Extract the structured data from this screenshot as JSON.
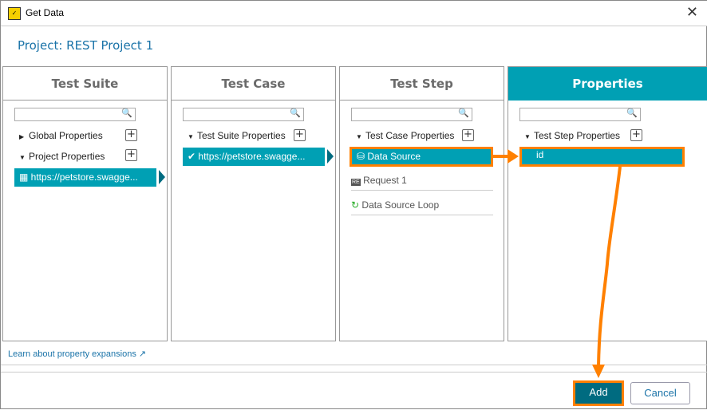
{
  "window": {
    "title": "Get Data",
    "close": "✕",
    "app_icon": "readyapi-icon"
  },
  "project_title": "Project: REST Project 1",
  "columns": {
    "suite": {
      "header": "Test Suite",
      "nodes": [
        "Global Properties",
        "Project Properties"
      ],
      "selected": "https://petstore.swagge..."
    },
    "case": {
      "header": "Test Case",
      "nodes": [
        "Test Suite Properties"
      ],
      "selected": "https://petstore.swagge..."
    },
    "step": {
      "header": "Test Step",
      "nodes": [
        "Test Case Properties"
      ],
      "selected": "Data Source",
      "items": [
        "Request 1",
        "Data Source Loop"
      ]
    },
    "props": {
      "header": "Properties",
      "nodes": [
        "Test Step Properties"
      ],
      "selected": "id"
    }
  },
  "footer": {
    "link": "Learn about property expansions",
    "add": "Add",
    "cancel": "Cancel"
  },
  "colors": {
    "accent": "#00a0b4",
    "highlight": "#ff8000",
    "primary_button": "#006b80"
  }
}
